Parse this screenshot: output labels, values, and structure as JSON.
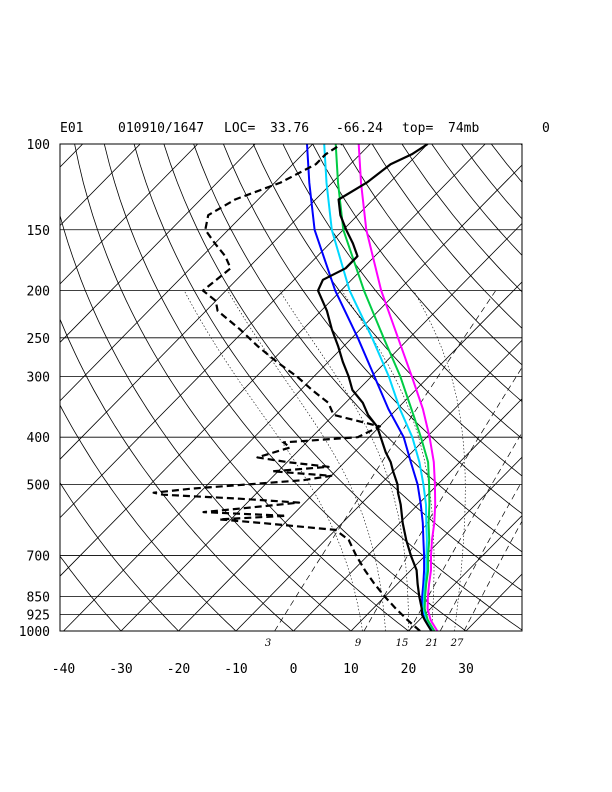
{
  "header": {
    "station": "E01",
    "datetime": "010910/1647",
    "loc_label": "LOC=",
    "lat": "33.76",
    "lon": "-66.24",
    "top_label": "top=",
    "top_value": "74mb",
    "flag": "0"
  },
  "chart_data": {
    "type": "skew-t",
    "title": "E01 010910/1647 LOC= 33.76 -66.24 top= 74mb 0",
    "pressure_axis": {
      "ticks": [
        "100",
        "150",
        "200",
        "250",
        "300",
        "400",
        "500",
        "700",
        "850",
        "925",
        "1000"
      ],
      "range_mb": [
        100,
        1000
      ]
    },
    "temperature_axis": {
      "ticks": [
        "-40",
        "-30",
        "-20",
        "-10",
        "0",
        "10",
        "20",
        "30"
      ],
      "range_c": [
        -40,
        40
      ]
    },
    "mixing_ratio_labels": [
      "3",
      "9",
      "15",
      "21",
      "27"
    ],
    "series": [
      {
        "name": "temperature",
        "color": "#000000",
        "style": "solid",
        "points": [
          [
            1000,
            24
          ],
          [
            975,
            22.5
          ],
          [
            950,
            21
          ],
          [
            925,
            19.5
          ],
          [
            900,
            18.5
          ],
          [
            850,
            16
          ],
          [
            800,
            13.5
          ],
          [
            750,
            11
          ],
          [
            700,
            7.5
          ],
          [
            650,
            4
          ],
          [
            600,
            0.5
          ],
          [
            550,
            -3
          ],
          [
            520,
            -5.5
          ],
          [
            500,
            -7
          ],
          [
            470,
            -10
          ],
          [
            450,
            -12
          ],
          [
            430,
            -14.5
          ],
          [
            400,
            -18
          ],
          [
            380,
            -20.5
          ],
          [
            360,
            -24
          ],
          [
            340,
            -27
          ],
          [
            320,
            -31
          ],
          [
            300,
            -34
          ],
          [
            280,
            -37.5
          ],
          [
            260,
            -41
          ],
          [
            240,
            -45
          ],
          [
            220,
            -49
          ],
          [
            200,
            -54
          ],
          [
            190,
            -55
          ],
          [
            180,
            -53
          ],
          [
            170,
            -53
          ],
          [
            160,
            -56
          ],
          [
            150,
            -59.5
          ],
          [
            140,
            -63
          ],
          [
            130,
            -66
          ],
          [
            120,
            -64
          ],
          [
            110,
            -63
          ],
          [
            105,
            -61
          ],
          [
            100,
            -60
          ]
        ]
      },
      {
        "name": "dewpoint",
        "color": "#000000",
        "style": "dashed",
        "points": [
          [
            1000,
            22
          ],
          [
            950,
            18
          ],
          [
            900,
            14
          ],
          [
            850,
            10
          ],
          [
            800,
            6
          ],
          [
            750,
            2
          ],
          [
            700,
            -2
          ],
          [
            650,
            -6
          ],
          [
            620,
            -10
          ],
          [
            600,
            -24
          ],
          [
            590,
            -32
          ],
          [
            580,
            -21
          ],
          [
            570,
            -36
          ],
          [
            560,
            -30
          ],
          [
            545,
            -21
          ],
          [
            535,
            -32
          ],
          [
            525,
            -46
          ],
          [
            520,
            -48
          ],
          [
            510,
            -42
          ],
          [
            500,
            -33
          ],
          [
            490,
            -24
          ],
          [
            480,
            -20
          ],
          [
            470,
            -31
          ],
          [
            460,
            -22
          ],
          [
            450,
            -30
          ],
          [
            440,
            -36
          ],
          [
            420,
            -32
          ],
          [
            410,
            -34
          ],
          [
            400,
            -22
          ],
          [
            380,
            -20
          ],
          [
            370,
            -25
          ],
          [
            360,
            -30
          ],
          [
            340,
            -33
          ],
          [
            320,
            -38
          ],
          [
            300,
            -43
          ],
          [
            280,
            -49
          ],
          [
            260,
            -55
          ],
          [
            240,
            -61
          ],
          [
            220,
            -68
          ],
          [
            210,
            -70
          ],
          [
            200,
            -74
          ],
          [
            180,
            -73
          ],
          [
            170,
            -76
          ],
          [
            160,
            -80
          ],
          [
            150,
            -84
          ],
          [
            140,
            -86
          ],
          [
            130,
            -84
          ],
          [
            120,
            -79
          ],
          [
            110,
            -76
          ],
          [
            105,
            -76
          ],
          [
            100,
            -75
          ]
        ]
      },
      {
        "name": "parcel-magenta",
        "color": "#ff00ff",
        "style": "solid",
        "points": [
          [
            1000,
            25
          ],
          [
            950,
            22
          ],
          [
            900,
            19.5
          ],
          [
            850,
            17.5
          ],
          [
            800,
            15.5
          ],
          [
            750,
            13.5
          ],
          [
            700,
            11
          ],
          [
            650,
            8.5
          ],
          [
            600,
            6
          ],
          [
            550,
            3
          ],
          [
            500,
            -0.5
          ],
          [
            450,
            -4.5
          ],
          [
            400,
            -9.5
          ],
          [
            350,
            -15.5
          ],
          [
            300,
            -23
          ],
          [
            250,
            -32
          ],
          [
            200,
            -43
          ],
          [
            150,
            -56
          ],
          [
            120,
            -65
          ],
          [
            100,
            -72
          ]
        ]
      },
      {
        "name": "parcel-green",
        "color": "#00cc44",
        "style": "solid",
        "points": [
          [
            1000,
            24.5
          ],
          [
            950,
            21.5
          ],
          [
            900,
            19
          ],
          [
            850,
            17
          ],
          [
            800,
            15
          ],
          [
            750,
            13
          ],
          [
            700,
            10.5
          ],
          [
            650,
            8
          ],
          [
            600,
            5
          ],
          [
            550,
            2
          ],
          [
            500,
            -1.5
          ],
          [
            450,
            -5.5
          ],
          [
            400,
            -11
          ],
          [
            350,
            -17.5
          ],
          [
            300,
            -25
          ],
          [
            250,
            -34.5
          ],
          [
            200,
            -46
          ],
          [
            150,
            -60
          ],
          [
            120,
            -69
          ],
          [
            100,
            -76
          ]
        ]
      },
      {
        "name": "parcel-cyan",
        "color": "#00d8ff",
        "style": "solid",
        "points": [
          [
            1000,
            24.2
          ],
          [
            950,
            21.3
          ],
          [
            900,
            18.8
          ],
          [
            850,
            16.8
          ],
          [
            800,
            14.8
          ],
          [
            750,
            12.7
          ],
          [
            700,
            10.2
          ],
          [
            650,
            7.6
          ],
          [
            600,
            4.6
          ],
          [
            550,
            1.4
          ],
          [
            500,
            -2.5
          ],
          [
            450,
            -7
          ],
          [
            400,
            -12.5
          ],
          [
            350,
            -19.5
          ],
          [
            300,
            -27
          ],
          [
            250,
            -36.5
          ],
          [
            200,
            -48.5
          ],
          [
            150,
            -62
          ],
          [
            120,
            -71
          ],
          [
            100,
            -78
          ]
        ]
      },
      {
        "name": "parcel-blue",
        "color": "#0000ff",
        "style": "solid",
        "points": [
          [
            1000,
            24
          ],
          [
            950,
            21
          ],
          [
            900,
            18.5
          ],
          [
            850,
            16.5
          ],
          [
            800,
            14.5
          ],
          [
            750,
            12.3
          ],
          [
            700,
            9.8
          ],
          [
            650,
            7
          ],
          [
            600,
            4
          ],
          [
            550,
            0.5
          ],
          [
            500,
            -3.5
          ],
          [
            450,
            -8.5
          ],
          [
            400,
            -14
          ],
          [
            350,
            -21.5
          ],
          [
            300,
            -29.5
          ],
          [
            250,
            -39
          ],
          [
            200,
            -51
          ],
          [
            150,
            -65
          ],
          [
            120,
            -74
          ],
          [
            100,
            -81
          ]
        ]
      }
    ]
  }
}
